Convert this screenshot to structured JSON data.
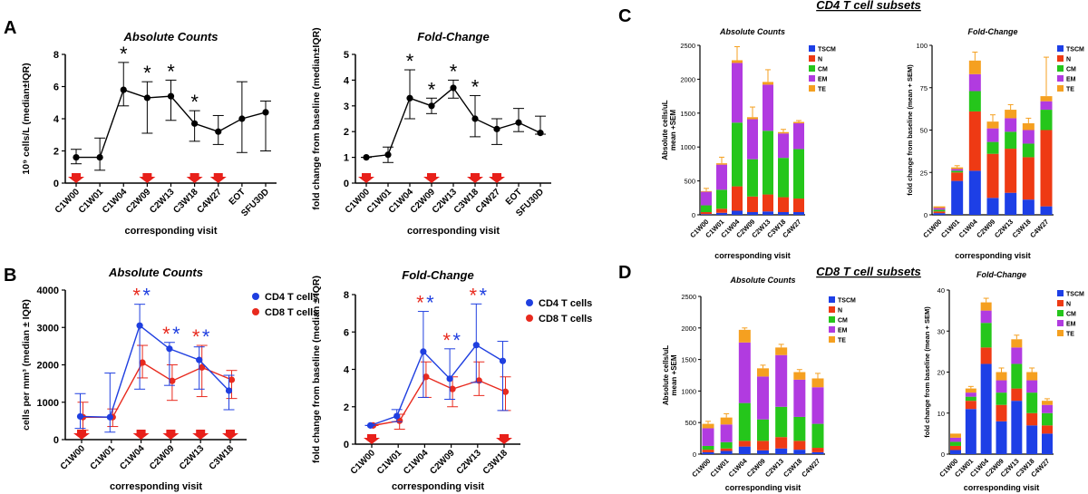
{
  "panel_letters": {
    "A": "A",
    "B": "B",
    "C": "C",
    "D": "D"
  },
  "colors": {
    "cd4": "#1f3fe0",
    "cd8": "#e82a1e",
    "arrow": "#e8201a",
    "TSCM": "#1d3fe6",
    "N": "#ee3a14",
    "CM": "#25c61b",
    "EM": "#b13be0",
    "TE": "#f5a020"
  },
  "chart_data": [
    {
      "id": "A_abs",
      "type": "line",
      "title": "Absolute Counts",
      "xlabel": "corresponding visit",
      "ylabel": "10⁹ cells/L (median±IQR)",
      "ylim": [
        0,
        8
      ],
      "yticks": [
        "0",
        "2",
        "4",
        "6",
        "8"
      ],
      "categories": [
        "C1W00",
        "C1W01",
        "C1W04",
        "C2W09",
        "C2W13",
        "C3W18",
        "C4W27",
        "EOT",
        "SFU30D"
      ],
      "values": [
        1.6,
        1.6,
        5.8,
        5.3,
        5.4,
        3.7,
        3.2,
        4.0,
        4.4
      ],
      "err_low": [
        1.2,
        0.8,
        4.8,
        3.1,
        3.9,
        2.6,
        2.4,
        1.9,
        2.0
      ],
      "err_high": [
        2.1,
        2.8,
        7.5,
        6.3,
        6.4,
        4.5,
        4.2,
        6.3,
        5.1
      ],
      "stars": [
        "",
        "",
        "*",
        "*",
        "*",
        "*",
        "",
        "",
        ""
      ],
      "arrows": [
        true,
        false,
        false,
        true,
        false,
        true,
        true,
        false,
        false
      ]
    },
    {
      "id": "A_fold",
      "type": "line",
      "title": "Fold-Change",
      "xlabel": "corresponding visit",
      "ylabel": "fold change from baseline (median±IQR)",
      "ylim": [
        0,
        5
      ],
      "yticks": [
        "0",
        "1",
        "2",
        "3",
        "4",
        "5"
      ],
      "categories": [
        "C1W00",
        "C1W01",
        "C1W04",
        "C2W09",
        "C2W13",
        "C3W18",
        "C4W27",
        "EOT",
        "SFU30D"
      ],
      "values": [
        1.0,
        1.1,
        3.3,
        3.0,
        3.7,
        2.5,
        2.1,
        2.35,
        1.95
      ],
      "err_low": [
        1.0,
        0.8,
        2.5,
        2.7,
        3.3,
        1.8,
        1.5,
        2.0,
        1.9
      ],
      "err_high": [
        1.0,
        1.4,
        4.4,
        3.3,
        4.0,
        3.4,
        2.5,
        2.9,
        2.6
      ],
      "stars": [
        "",
        "",
        "*",
        "*",
        "*",
        "*",
        "",
        "",
        ""
      ],
      "arrows": [
        true,
        false,
        false,
        true,
        false,
        true,
        true,
        false,
        false
      ]
    },
    {
      "id": "B_abs",
      "type": "line",
      "title": "Absolute Counts",
      "xlabel": "corresponding visit",
      "ylabel": "cells per mm³ (median ± IQR)",
      "ylim": [
        0,
        4000
      ],
      "yticks": [
        "0",
        "1000",
        "2000",
        "3000",
        "4000"
      ],
      "categories": [
        "C1W00",
        "C1W01",
        "C1W04",
        "C2W09",
        "C2W13",
        "C3W18"
      ],
      "series": [
        {
          "name": "CD4 T cells",
          "values": [
            620,
            600,
            3050,
            2430,
            2130,
            1310
          ],
          "err_low": [
            300,
            200,
            1350,
            1450,
            1350,
            800
          ],
          "err_high": [
            1230,
            1780,
            3620,
            2600,
            2480,
            1720
          ]
        },
        {
          "name": "CD8 T cells",
          "values": [
            600,
            600,
            2060,
            1570,
            1930,
            1600
          ],
          "err_low": [
            250,
            350,
            1650,
            1050,
            1150,
            1100
          ],
          "err_high": [
            1000,
            820,
            2520,
            2000,
            2520,
            1850
          ]
        }
      ],
      "stars": [
        "",
        "",
        "**",
        "**",
        "**",
        ""
      ],
      "arrows": [
        true,
        false,
        true,
        true,
        true,
        true
      ]
    },
    {
      "id": "B_fold",
      "type": "line",
      "title": "Fold-Change",
      "xlabel": "corresponding visit",
      "ylabel": "fold change from baseline (median ± IQR)",
      "ylim": [
        0,
        8
      ],
      "yticks": [
        "0",
        "2",
        "4",
        "6",
        "8"
      ],
      "categories": [
        "C1W00",
        "C1W01",
        "C1W04",
        "C2W09",
        "C2W13",
        "C3W18"
      ],
      "series": [
        {
          "name": "CD4 T cells",
          "values": [
            1.0,
            1.5,
            4.95,
            3.5,
            5.3,
            4.45
          ],
          "err_low": [
            1.0,
            1.2,
            2.5,
            2.4,
            3.3,
            1.8
          ],
          "err_high": [
            1.0,
            1.85,
            7.1,
            5.1,
            7.5,
            5.5
          ]
        },
        {
          "name": "CD8 T cells",
          "values": [
            1.0,
            1.25,
            3.6,
            2.95,
            3.4,
            2.8
          ],
          "err_low": [
            1.0,
            0.8,
            2.5,
            2.0,
            2.6,
            1.8
          ],
          "err_high": [
            1.0,
            1.6,
            4.4,
            3.6,
            4.4,
            3.6
          ]
        }
      ],
      "stars": [
        "",
        "",
        "**",
        "**",
        "**",
        ""
      ],
      "arrows": [
        true,
        false,
        false,
        false,
        false,
        true
      ]
    },
    {
      "id": "C_abs",
      "type": "bar",
      "stacked": true,
      "title": "Absolute Counts",
      "xlabel": "corresponding visit",
      "ylabel": "Absolute cells/uL mean +SEM",
      "ylim": [
        0,
        2500
      ],
      "yticks": [
        "0",
        "500",
        "1000",
        "1500",
        "2000",
        "2500"
      ],
      "categories": [
        "C1W00",
        "C1W01",
        "C1W04",
        "C2W09",
        "C2W13",
        "C3W18",
        "C4W27"
      ],
      "legend": [
        "TSCM",
        "N",
        "CM",
        "EM",
        "TE"
      ],
      "series": [
        {
          "name": "TSCM",
          "values": [
            10,
            30,
            60,
            40,
            50,
            40,
            40
          ]
        },
        {
          "name": "N",
          "values": [
            30,
            60,
            360,
            230,
            250,
            220,
            200
          ]
        },
        {
          "name": "CM",
          "values": [
            100,
            280,
            940,
            550,
            940,
            580,
            730
          ]
        },
        {
          "name": "EM",
          "values": [
            200,
            370,
            880,
            590,
            680,
            360,
            380
          ]
        },
        {
          "name": "TE",
          "values": [
            10,
            20,
            40,
            30,
            40,
            20,
            20
          ]
        }
      ],
      "err": [
        40,
        90,
        200,
        150,
        180,
        40,
        20
      ]
    },
    {
      "id": "C_fold",
      "type": "bar",
      "stacked": true,
      "title": "Fold-Change",
      "xlabel": "corresponding visit",
      "ylabel": "fold change from baseline (mean + SEM)",
      "ylim": [
        0,
        100
      ],
      "yticks": [
        "0",
        "25",
        "50",
        "75",
        "100"
      ],
      "categories": [
        "C1W00",
        "C1W01",
        "C1W04",
        "C2W09",
        "C2W13",
        "C3W18",
        "C4W27"
      ],
      "legend": [
        "TSCM",
        "N",
        "CM",
        "EM",
        "TE"
      ],
      "series": [
        {
          "name": "TSCM",
          "values": [
            1,
            20,
            26,
            10,
            13,
            9,
            5
          ]
        },
        {
          "name": "N",
          "values": [
            1,
            5,
            35,
            26,
            26,
            25,
            45
          ]
        },
        {
          "name": "CM",
          "values": [
            1,
            1,
            12,
            7,
            10,
            8,
            12
          ]
        },
        {
          "name": "EM",
          "values": [
            1,
            1,
            10,
            8,
            8,
            8,
            5
          ]
        },
        {
          "name": "TE",
          "values": [
            1,
            1,
            8,
            4,
            5,
            4,
            3
          ]
        }
      ],
      "err": [
        0,
        1,
        5,
        4,
        3,
        3,
        23
      ]
    },
    {
      "id": "D_abs",
      "type": "bar",
      "stacked": true,
      "title": "Absolute Counts",
      "xlabel": "corresponding visit",
      "ylabel": "Absolute cells/uL mean +SEM",
      "ylim": [
        0,
        2500
      ],
      "yticks": [
        "0",
        "500",
        "1000",
        "1500",
        "2000",
        "2500"
      ],
      "categories": [
        "C1W00",
        "C1W01",
        "C1W04",
        "C2W09",
        "C2W13",
        "C3W18",
        "C4W27"
      ],
      "legend": [
        "TSCM",
        "N",
        "CM",
        "EM",
        "TE"
      ],
      "series": [
        {
          "name": "TSCM",
          "values": [
            30,
            50,
            120,
            60,
            90,
            70,
            30
          ]
        },
        {
          "name": "N",
          "values": [
            40,
            40,
            90,
            150,
            180,
            140,
            70
          ]
        },
        {
          "name": "CM",
          "values": [
            60,
            100,
            600,
            340,
            480,
            380,
            380
          ]
        },
        {
          "name": "EM",
          "values": [
            280,
            280,
            960,
            680,
            820,
            590,
            580
          ]
        },
        {
          "name": "TE",
          "values": [
            70,
            110,
            200,
            130,
            120,
            120,
            140
          ]
        }
      ],
      "err": [
        40,
        60,
        30,
        50,
        50,
        40,
        80
      ]
    },
    {
      "id": "D_fold",
      "type": "bar",
      "stacked": true,
      "title": "Fold-Change",
      "xlabel": "corresponding visit",
      "ylabel": "fold change from baseline (mean + SEM)",
      "ylim": [
        0,
        40
      ],
      "yticks": [
        "0",
        "10",
        "20",
        "30",
        "40"
      ],
      "categories": [
        "C1W00",
        "C1W01",
        "C1W04",
        "C2W09",
        "C2W13",
        "C3W18",
        "C4W27"
      ],
      "legend": [
        "TSCM",
        "N",
        "CM",
        "EM",
        "TE"
      ],
      "series": [
        {
          "name": "TSCM",
          "values": [
            1,
            11,
            22,
            8,
            13,
            7,
            5
          ]
        },
        {
          "name": "N",
          "values": [
            1,
            2,
            4,
            4,
            3,
            3,
            2
          ]
        },
        {
          "name": "CM",
          "values": [
            1,
            1,
            6,
            3,
            6,
            5,
            3
          ]
        },
        {
          "name": "EM",
          "values": [
            1,
            1,
            3,
            3,
            4,
            3,
            2
          ]
        },
        {
          "name": "TE",
          "values": [
            1,
            1,
            2,
            2,
            2,
            2,
            1
          ]
        }
      ],
      "err": [
        0,
        0.5,
        1,
        1,
        1,
        1,
        0.5
      ]
    }
  ],
  "subset_titles": {
    "C": "CD4 T cell subsets",
    "D": "CD8 T cell subsets"
  },
  "line_legend": {
    "cd4": "CD4 T cells",
    "cd8": "CD8 T cells"
  }
}
